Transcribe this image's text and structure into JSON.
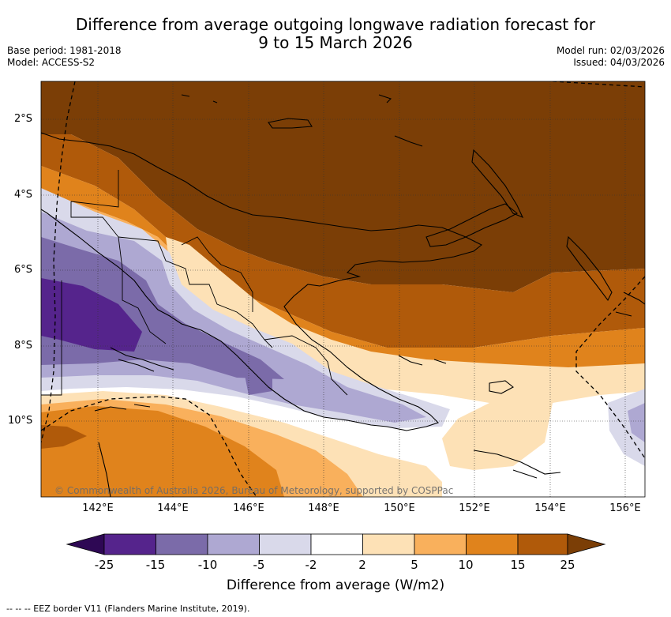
{
  "title_line1": "Difference from average outgoing longwave radiation forecast for",
  "title_line2": "9 to 15 March 2026",
  "base_period": "Base period: 1981-2018",
  "model": "Model: ACCESS-S2",
  "model_run": "Model run: 02/03/2026",
  "issued": "Issued: 04/03/2026",
  "lat_labels": [
    "2°S",
    "4°S",
    "6°S",
    "8°S",
    "10°S"
  ],
  "lon_labels": [
    "142°E",
    "144°E",
    "146°E",
    "148°E",
    "150°E",
    "152°E",
    "154°E",
    "156°E"
  ],
  "copyright": "© Commonwealth of Australia 2026, Bureau of Meteorology, supported by COSPPac",
  "colorbar": {
    "ticks": [
      "-25",
      "-15",
      "-10",
      "-5",
      "-2",
      "2",
      "5",
      "10",
      "15",
      "25"
    ],
    "colors": [
      "#2e0854",
      "#55248c",
      "#7b6ba9",
      "#aea8d2",
      "#d9d9ea",
      "#ffffff",
      "#fde1b6",
      "#f9b05c",
      "#e0831c",
      "#b05a0a",
      "#7b3e06"
    ],
    "label": "Difference from average (W/m2)"
  },
  "footer": "-- --  -- EEZ border V11 (Flanders Marine Institute, 2019)."
}
